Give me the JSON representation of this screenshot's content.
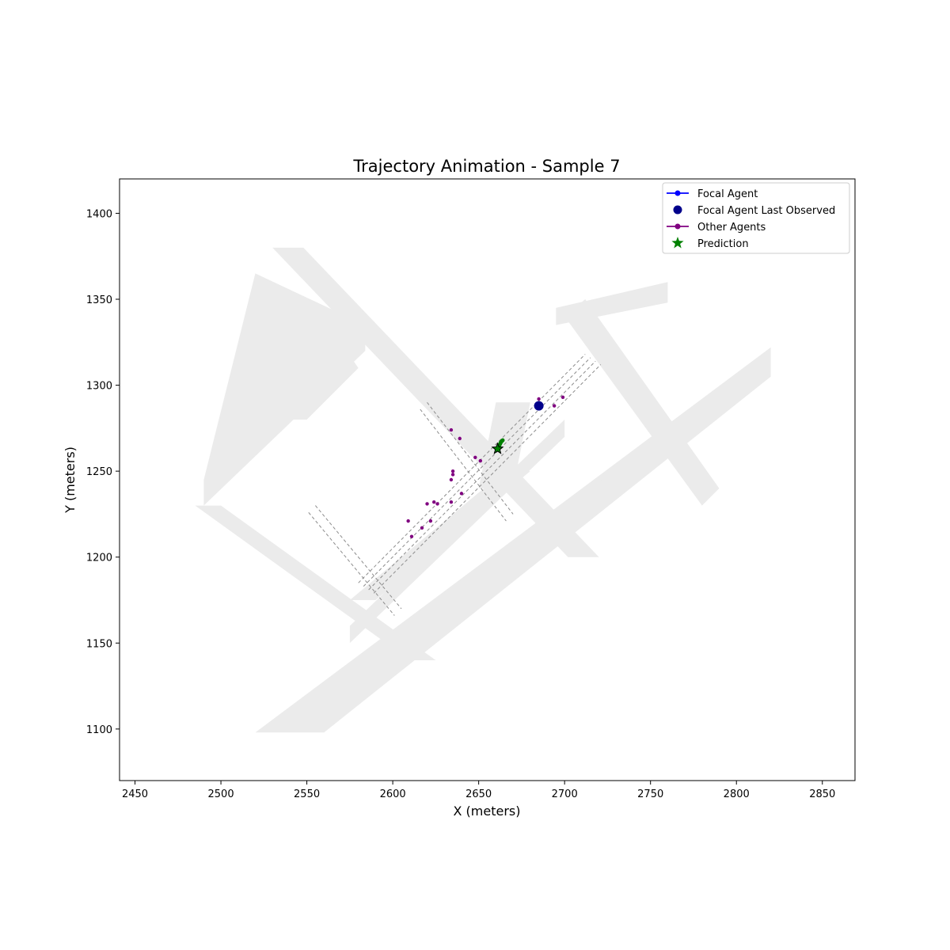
{
  "chart_data": {
    "type": "scatter",
    "title": "Trajectory Animation - Sample 7",
    "xlabel": "X (meters)",
    "ylabel": "Y (meters)",
    "xlim": [
      2441,
      2869
    ],
    "ylim": [
      1070,
      1420
    ],
    "xticks": [
      2450,
      2500,
      2550,
      2600,
      2650,
      2700,
      2750,
      2800,
      2850
    ],
    "yticks": [
      1100,
      1150,
      1200,
      1250,
      1300,
      1350,
      1400
    ],
    "grid": false,
    "legend_position": "top-right",
    "legend": [
      {
        "label": "Focal Agent",
        "marker": "line-dot",
        "color": "#0000ff"
      },
      {
        "label": "Focal Agent Last Observed",
        "marker": "dot",
        "color": "#00008b"
      },
      {
        "label": "Other Agents",
        "marker": "line-dot",
        "color": "#800080"
      },
      {
        "label": "Prediction",
        "marker": "star",
        "color": "#008000"
      }
    ],
    "series": [
      {
        "name": "Focal Agent",
        "color": "#0000ff",
        "points": []
      },
      {
        "name": "Focal Agent Last Observed",
        "color": "#00008b",
        "points": [
          [
            2685,
            1288
          ]
        ]
      },
      {
        "name": "Other Agents",
        "color": "#800080",
        "points": [
          [
            2685,
            1292
          ],
          [
            2694,
            1288
          ],
          [
            2699,
            1293
          ],
          [
            2634,
            1274
          ],
          [
            2639,
            1269
          ],
          [
            2648,
            1258
          ],
          [
            2651,
            1256
          ],
          [
            2635,
            1250
          ],
          [
            2635,
            1248
          ],
          [
            2634,
            1245
          ],
          [
            2620,
            1231
          ],
          [
            2624,
            1232
          ],
          [
            2626,
            1231
          ],
          [
            2634,
            1232
          ],
          [
            2640,
            1237
          ],
          [
            2609,
            1221
          ],
          [
            2617,
            1217
          ],
          [
            2622,
            1221
          ],
          [
            2611,
            1212
          ]
        ]
      },
      {
        "name": "Prediction",
        "color": "#008000",
        "path": [
          [
            2661,
            1263
          ],
          [
            2662,
            1265
          ],
          [
            2663,
            1267
          ],
          [
            2664,
            1268
          ]
        ],
        "star": [
          2661,
          1263
        ]
      }
    ],
    "map": {
      "road_color": "#ebebeb",
      "lane_color": "#8c8c8c",
      "roads": [
        [
          [
            2530,
            1380
          ],
          [
            2548,
            1380
          ],
          [
            2720,
            1200
          ],
          [
            2702,
            1200
          ]
        ],
        [
          [
            2660,
            1290
          ],
          [
            2680,
            1290
          ],
          [
            2670,
            1240
          ],
          [
            2650,
            1240
          ]
        ],
        [
          [
            2490,
            1245
          ],
          [
            2490,
            1230
          ],
          [
            2584,
            1320
          ],
          [
            2584,
            1335
          ],
          [
            2520,
            1365
          ]
        ],
        [
          [
            2550,
            1280
          ],
          [
            2580,
            1310
          ],
          [
            2566,
            1330
          ],
          [
            2520,
            1280
          ]
        ],
        [
          [
            2575,
            1160
          ],
          [
            2575,
            1150
          ],
          [
            2700,
            1270
          ],
          [
            2700,
            1280
          ]
        ],
        [
          [
            2520,
            1098
          ],
          [
            2560,
            1098
          ],
          [
            2820,
            1305
          ],
          [
            2820,
            1322
          ]
        ],
        [
          [
            2695,
            1335
          ],
          [
            2695,
            1345
          ],
          [
            2760,
            1360
          ],
          [
            2760,
            1348
          ]
        ],
        [
          [
            2700,
            1340
          ],
          [
            2712,
            1350
          ],
          [
            2790,
            1240
          ],
          [
            2780,
            1230
          ]
        ],
        [
          [
            2560,
            1300
          ],
          [
            2560,
            1312
          ],
          [
            2575,
            1325
          ],
          [
            2575,
            1310
          ]
        ],
        [
          [
            2575,
            1175
          ],
          [
            2590,
            1175
          ],
          [
            2680,
            1250
          ],
          [
            2665,
            1250
          ]
        ],
        [
          [
            2610,
            1140
          ],
          [
            2625,
            1140
          ],
          [
            2500,
            1230
          ],
          [
            2485,
            1230
          ]
        ],
        [
          [
            2715,
            1240
          ],
          [
            2733,
            1240
          ],
          [
            2795,
            1290
          ],
          [
            2780,
            1290
          ]
        ]
      ],
      "lanes": [
        [
          [
            2580,
            1185
          ],
          [
            2712,
            1318
          ]
        ],
        [
          [
            2583,
            1183
          ],
          [
            2715,
            1316
          ]
        ],
        [
          [
            2586,
            1181
          ],
          [
            2718,
            1314
          ]
        ],
        [
          [
            2589,
            1179
          ],
          [
            2721,
            1312
          ]
        ],
        [
          [
            2620,
            1290
          ],
          [
            2670,
            1225
          ]
        ],
        [
          [
            2616,
            1286
          ],
          [
            2666,
            1221
          ]
        ],
        [
          [
            2555,
            1230
          ],
          [
            2605,
            1170
          ]
        ],
        [
          [
            2551,
            1226
          ],
          [
            2601,
            1166
          ]
        ]
      ]
    }
  }
}
